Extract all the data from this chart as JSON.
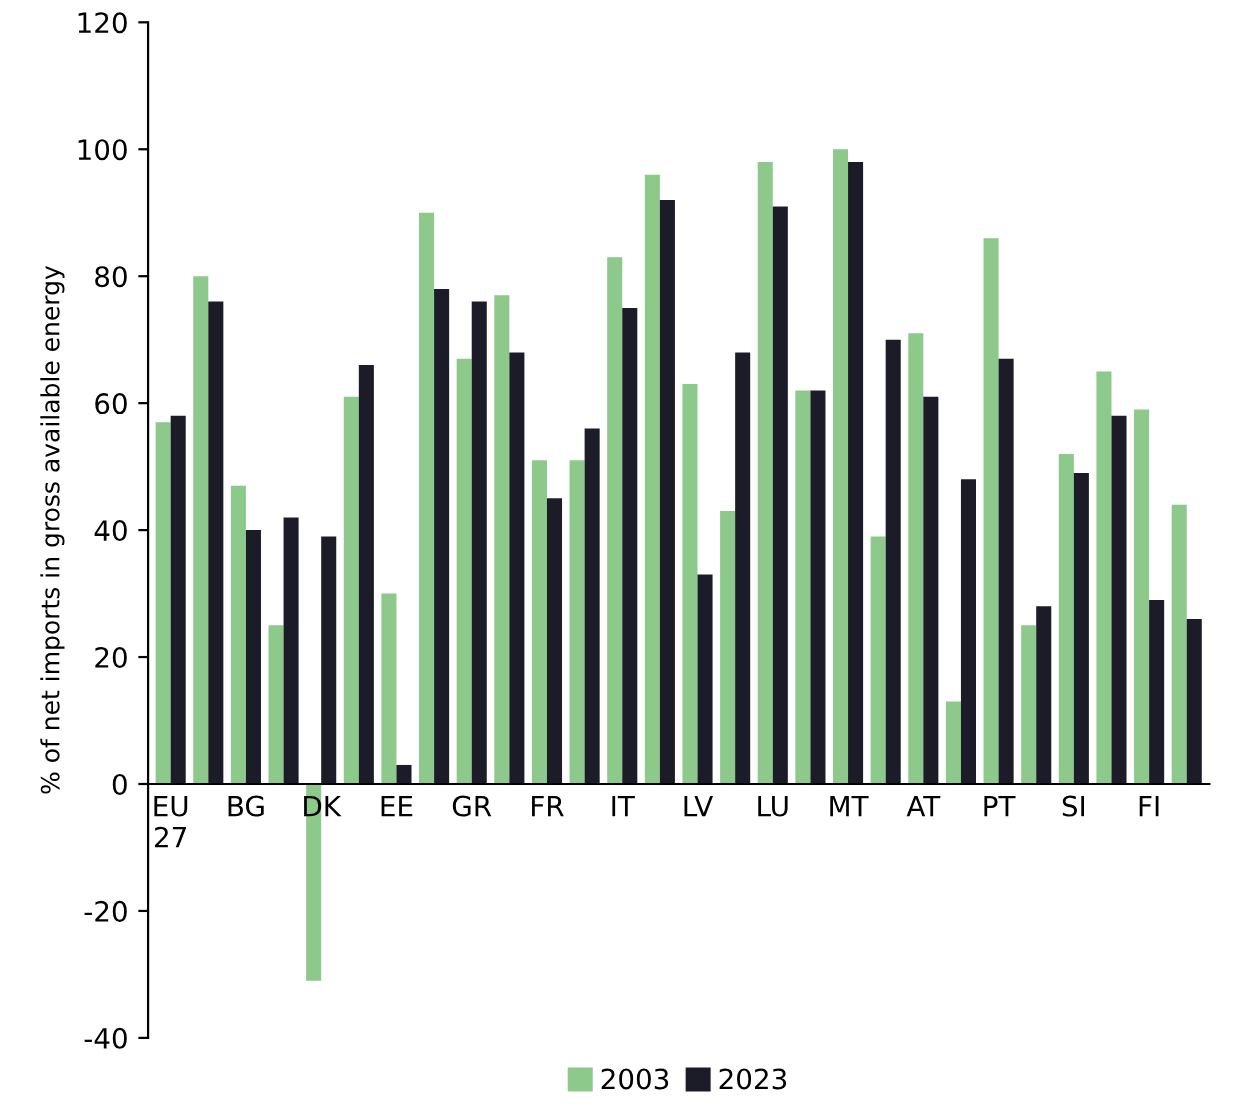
{
  "chart_data": {
    "type": "bar",
    "ylabel": "% of net imports in gross available energy",
    "categories": [
      "EU\n27",
      null,
      "BG",
      null,
      "DK",
      null,
      "EE",
      null,
      "GR",
      null,
      "FR",
      null,
      "IT",
      null,
      "LV",
      null,
      "LU",
      null,
      "MT",
      null,
      "AT",
      null,
      "PT",
      null,
      "SI",
      null,
      "FI",
      null
    ],
    "series": [
      {
        "name": "2003",
        "color": "#8cc98a",
        "values": [
          57,
          80,
          47,
          25,
          -31,
          61,
          30,
          90,
          67,
          77,
          51,
          51,
          83,
          96,
          63,
          43,
          98,
          62,
          100,
          39,
          71,
          13,
          86,
          25,
          52,
          65,
          59,
          44
        ]
      },
      {
        "name": "2023",
        "color": "#1c1c28",
        "values": [
          58,
          76,
          40,
          42,
          39,
          66,
          3,
          78,
          76,
          68,
          45,
          56,
          75,
          92,
          33,
          68,
          91,
          62,
          98,
          70,
          61,
          48,
          67,
          28,
          49,
          58,
          29,
          26
        ]
      }
    ],
    "ylim": [
      -40,
      120
    ],
    "yticks": [
      -40,
      -20,
      0,
      20,
      40,
      60,
      80,
      100,
      120
    ],
    "grid": false,
    "legend": "bottom"
  }
}
